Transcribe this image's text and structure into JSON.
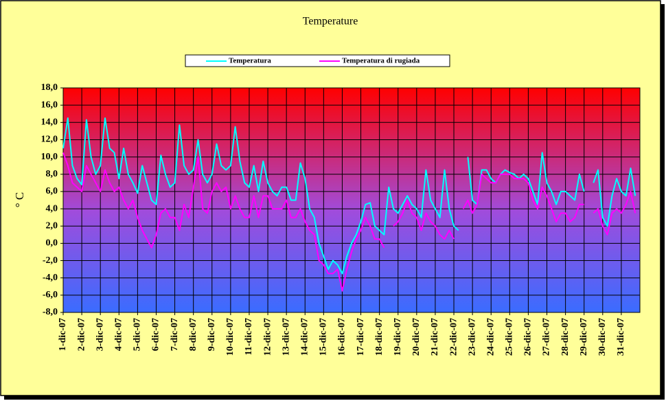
{
  "chart_data": {
    "type": "line",
    "title": "Temperature",
    "ylabel": "° C",
    "legend": "top",
    "grid": true,
    "xlim": [
      0,
      31
    ],
    "ylim": [
      -8,
      18
    ],
    "yticks": [
      {
        "value": -8,
        "label": "-8,0"
      },
      {
        "value": -6,
        "label": "-6,0"
      },
      {
        "value": -4,
        "label": "-4,0"
      },
      {
        "value": -2,
        "label": "-2,0"
      },
      {
        "value": 0,
        "label": "0,0"
      },
      {
        "value": 2,
        "label": "2,0"
      },
      {
        "value": 4,
        "label": "4,0"
      },
      {
        "value": 6,
        "label": "6,0"
      },
      {
        "value": 8,
        "label": "8,0"
      },
      {
        "value": 10,
        "label": "10,0"
      },
      {
        "value": 12,
        "label": "12,0"
      },
      {
        "value": 14,
        "label": "14,0"
      },
      {
        "value": 16,
        "label": "16,0"
      },
      {
        "value": 18,
        "label": "18,0"
      }
    ],
    "xticks": [
      {
        "value": 0,
        "label": "1-dic-07"
      },
      {
        "value": 1,
        "label": "2-dic-07"
      },
      {
        "value": 2,
        "label": "3-dic-07"
      },
      {
        "value": 3,
        "label": "4-dic-07"
      },
      {
        "value": 4,
        "label": "5-dic-07"
      },
      {
        "value": 5,
        "label": "6-dic-07"
      },
      {
        "value": 6,
        "label": "7-dic-07"
      },
      {
        "value": 7,
        "label": "8-dic-07"
      },
      {
        "value": 8,
        "label": "9-dic-07"
      },
      {
        "value": 9,
        "label": "10-dic-07"
      },
      {
        "value": 10,
        "label": "11-dic-07"
      },
      {
        "value": 11,
        "label": "12-dic-07"
      },
      {
        "value": 12,
        "label": "13-dic-07"
      },
      {
        "value": 13,
        "label": "14-dic-07"
      },
      {
        "value": 14,
        "label": "15-dic-07"
      },
      {
        "value": 15,
        "label": "16-dic-07"
      },
      {
        "value": 16,
        "label": "17-dic-07"
      },
      {
        "value": 17,
        "label": "18-dic-07"
      },
      {
        "value": 18,
        "label": "19-dic-07"
      },
      {
        "value": 19,
        "label": "20-dic-07"
      },
      {
        "value": 20,
        "label": "21-dic-07"
      },
      {
        "value": 21,
        "label": "22-dic-07"
      },
      {
        "value": 22,
        "label": "23-dic-07"
      },
      {
        "value": 23,
        "label": "24-dic-07"
      },
      {
        "value": 24,
        "label": "25-dic-07"
      },
      {
        "value": 25,
        "label": "26-dic-07"
      },
      {
        "value": 26,
        "label": "27-dic-07"
      },
      {
        "value": 27,
        "label": "28-dic-07"
      },
      {
        "value": 28,
        "label": "29-dic-07"
      },
      {
        "value": 29,
        "label": "30-dic-07"
      },
      {
        "value": 30,
        "label": "31-dic-07"
      }
    ],
    "x": [
      0,
      0.25,
      0.5,
      0.75,
      1,
      1.25,
      1.5,
      1.75,
      2,
      2.25,
      2.5,
      2.75,
      3,
      3.25,
      3.5,
      3.75,
      4,
      4.25,
      4.5,
      4.75,
      5,
      5.25,
      5.5,
      5.75,
      6,
      6.25,
      6.5,
      6.75,
      7,
      7.25,
      7.5,
      7.75,
      8,
      8.25,
      8.5,
      8.75,
      9,
      9.25,
      9.5,
      9.75,
      10,
      10.25,
      10.5,
      10.75,
      11,
      11.25,
      11.5,
      11.75,
      12,
      12.25,
      12.5,
      12.75,
      13,
      13.25,
      13.5,
      13.75,
      14,
      14.25,
      14.5,
      14.75,
      15,
      15.25,
      15.5,
      15.75,
      16,
      16.25,
      16.5,
      16.75,
      17,
      17.25,
      17.5,
      17.75,
      18,
      18.25,
      18.5,
      18.75,
      19,
      19.25,
      19.5,
      19.75,
      20,
      20.25,
      20.5,
      20.75,
      21,
      21.25,
      21.5,
      21.75,
      22,
      22.25,
      22.5,
      22.75,
      23,
      23.25,
      23.5,
      23.75,
      24,
      24.25,
      24.5,
      24.75,
      25,
      25.25,
      25.5,
      25.75,
      26,
      26.25,
      26.5,
      26.75,
      27,
      27.25,
      27.5,
      27.75,
      28,
      28.25,
      28.5,
      28.75,
      29,
      29.25,
      29.5,
      29.75,
      30,
      30.25,
      30.5,
      30.75
    ],
    "series": [
      {
        "name": "Temperatura",
        "color": "#00ffff",
        "values": [
          11,
          14.5,
          9,
          7.5,
          6.8,
          14.3,
          10,
          8,
          9,
          14.5,
          11,
          10.5,
          7.5,
          11,
          8,
          7,
          5.8,
          9,
          7,
          5,
          4.5,
          10.2,
          8,
          6.5,
          7,
          13.7,
          9,
          8,
          8.5,
          12,
          8,
          7,
          8,
          11.5,
          9,
          8.5,
          9,
          13.5,
          9.5,
          7,
          6.5,
          9,
          6,
          9.5,
          7,
          6,
          5.5,
          6.5,
          6.5,
          5,
          5,
          9.3,
          7.5,
          4,
          3,
          0,
          -1.5,
          -3,
          -2,
          -2.5,
          -3.5,
          -1.5,
          0,
          1,
          2.5,
          4.5,
          4.7,
          2,
          1.5,
          1,
          6.5,
          4,
          3.5,
          4.5,
          5.5,
          4.5,
          4,
          3,
          8.5,
          5,
          4,
          3,
          8.5,
          4,
          2,
          1.5,
          null,
          10,
          5,
          4.5,
          8.5,
          8.5,
          7.5,
          7,
          8,
          8.5,
          8.2,
          8,
          7.5,
          8,
          7.5,
          6,
          4.5,
          10.5,
          7,
          6,
          4.5,
          6,
          6,
          5.5,
          5,
          8,
          6,
          null,
          7,
          8.5,
          3,
          2,
          5.5,
          7.5,
          6,
          5.5,
          8.7,
          5.5
        ]
      },
      {
        "name": "Temperatura di rugiada",
        "color": "#ff00ff",
        "values": [
          10.5,
          9,
          7,
          6.5,
          6,
          9,
          8,
          7,
          6,
          8.5,
          7,
          6,
          6.5,
          5,
          4,
          5,
          3,
          1.5,
          0.5,
          -0.5,
          1,
          3.5,
          4,
          3,
          3,
          1.5,
          4.5,
          3,
          6.5,
          10,
          4,
          3.5,
          6,
          7,
          6,
          6.5,
          4,
          5.5,
          4,
          3,
          3,
          5.5,
          3,
          5.5,
          5.5,
          4,
          4,
          4,
          5,
          3,
          3,
          4,
          2.5,
          1.5,
          1,
          -2,
          -2.5,
          -3.5,
          -3.5,
          -3,
          -5.5,
          -3,
          -1,
          0.5,
          1.5,
          3,
          2,
          0.5,
          0.5,
          -0.5,
          null,
          2,
          2.5,
          3.5,
          5,
          3.5,
          3,
          1.5,
          3.5,
          2.5,
          2,
          1,
          0.5,
          1.5,
          0.5,
          null,
          4,
          5,
          3.5,
          4.5,
          8,
          7.5,
          7,
          7,
          8,
          8,
          8,
          7.5,
          7.5,
          7.5,
          7,
          5,
          4,
          6.5,
          5.5,
          4,
          2.5,
          3.5,
          3.5,
          2.5,
          3,
          4.5,
          4.5,
          null,
          3.5,
          4,
          2,
          1,
          3.5,
          4,
          3.5,
          4.5,
          6,
          3.5
        ]
      }
    ]
  }
}
